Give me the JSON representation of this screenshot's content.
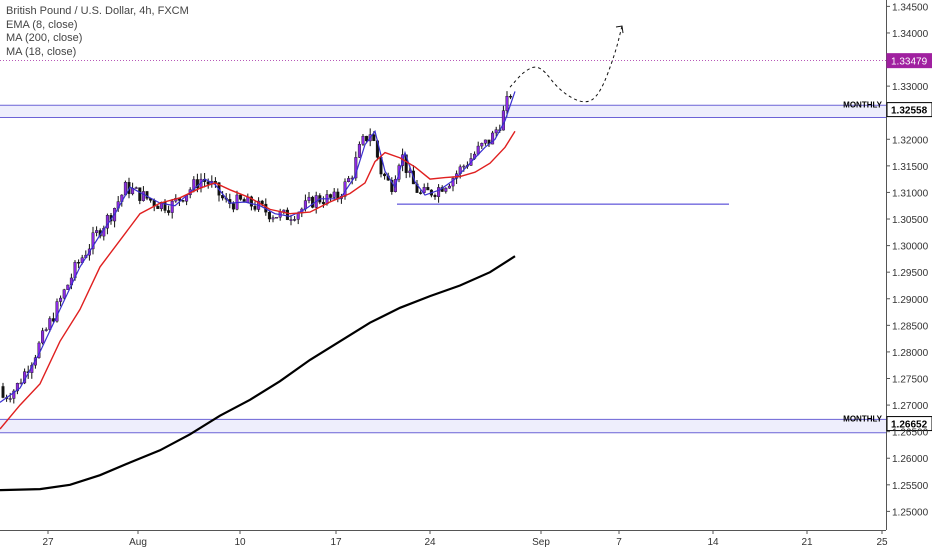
{
  "legend": {
    "symbol": "British Pound / U.S. Dollar, 4h, FXCM",
    "indicator_1": "EMA (8, close)",
    "indicator_2": "MA (200, close)",
    "indicator_3": "MA (18, close)"
  },
  "colors": {
    "up_candle": "#8a2be2",
    "down_candle": "#111111",
    "ema8": "#3a2fd0",
    "ma18": "#e02020",
    "ma200": "#000000",
    "zone_line": "#6c63d6",
    "zone_fill": "#eeeefc",
    "last_price_bg": "#a020a0",
    "axis_text": "#333333"
  },
  "chart_data": {
    "type": "candlestick",
    "title": "British Pound / U.S. Dollar, 4h, FXCM",
    "ylim": [
      1.2465,
      1.3462
    ],
    "y_ticks": [
      "1.34500",
      "1.34000",
      "1.33479",
      "1.33000",
      "1.32558",
      "1.32000",
      "1.31500",
      "1.31000",
      "1.30500",
      "1.30000",
      "1.29500",
      "1.29000",
      "1.28500",
      "1.28000",
      "1.27500",
      "1.27000",
      "1.26652",
      "1.26500",
      "1.26000",
      "1.25500",
      "1.25000"
    ],
    "x_ticks": [
      "27",
      "Aug",
      "10",
      "17",
      "24",
      "Sep",
      "7",
      "14",
      "21",
      "25"
    ],
    "last_price": "1.33479",
    "levels": [
      {
        "label": "MONTHLY",
        "price_label": "1.32558",
        "top": 1.3264,
        "bottom": 1.3241
      },
      {
        "label": "MONTHLY",
        "price_label": "1.26652",
        "top": 1.2673,
        "bottom": 1.2648
      }
    ],
    "support_line": 1.3078,
    "series": [
      {
        "name": "EMA (8, close)",
        "points": [
          [
            0,
            1.2705
          ],
          [
            20,
            1.2732
          ],
          [
            40,
            1.28
          ],
          [
            60,
            1.288
          ],
          [
            80,
            1.296
          ],
          [
            100,
            1.302
          ],
          [
            115,
            1.306
          ],
          [
            130,
            1.311
          ],
          [
            145,
            1.3095
          ],
          [
            160,
            1.308
          ],
          [
            175,
            1.3075
          ],
          [
            190,
            1.31
          ],
          [
            205,
            1.3125
          ],
          [
            215,
            1.3115
          ],
          [
            230,
            1.308
          ],
          [
            245,
            1.3082
          ],
          [
            260,
            1.3075
          ],
          [
            275,
            1.306
          ],
          [
            290,
            1.3055
          ],
          [
            305,
            1.3068
          ],
          [
            320,
            1.3088
          ],
          [
            340,
            1.3088
          ],
          [
            355,
            1.313
          ],
          [
            365,
            1.319
          ],
          [
            375,
            1.3215
          ],
          [
            385,
            1.314
          ],
          [
            395,
            1.311
          ],
          [
            405,
            1.3175
          ],
          [
            415,
            1.312
          ],
          [
            425,
            1.3095
          ],
          [
            440,
            1.3105
          ],
          [
            455,
            1.3125
          ],
          [
            470,
            1.3155
          ],
          [
            485,
            1.3185
          ],
          [
            495,
            1.32
          ],
          [
            505,
            1.3235
          ],
          [
            515,
            1.329
          ]
        ]
      },
      {
        "name": "MA (18, close)",
        "points": [
          [
            0,
            1.2655
          ],
          [
            20,
            1.27
          ],
          [
            40,
            1.274
          ],
          [
            60,
            1.282
          ],
          [
            80,
            1.288
          ],
          [
            100,
            1.296
          ],
          [
            120,
            1.301
          ],
          [
            140,
            1.306
          ],
          [
            160,
            1.308
          ],
          [
            180,
            1.309
          ],
          [
            200,
            1.3108
          ],
          [
            215,
            1.3118
          ],
          [
            230,
            1.3105
          ],
          [
            250,
            1.309
          ],
          [
            270,
            1.3068
          ],
          [
            290,
            1.306
          ],
          [
            310,
            1.3063
          ],
          [
            330,
            1.3082
          ],
          [
            350,
            1.3098
          ],
          [
            365,
            1.3118
          ],
          [
            375,
            1.3158
          ],
          [
            385,
            1.3175
          ],
          [
            400,
            1.3165
          ],
          [
            415,
            1.3148
          ],
          [
            430,
            1.3125
          ],
          [
            445,
            1.3128
          ],
          [
            460,
            1.313
          ],
          [
            475,
            1.3138
          ],
          [
            490,
            1.3155
          ],
          [
            505,
            1.3185
          ],
          [
            515,
            1.3215
          ]
        ]
      },
      {
        "name": "MA (200, close)",
        "points": [
          [
            0,
            1.254
          ],
          [
            40,
            1.2542
          ],
          [
            70,
            1.255
          ],
          [
            100,
            1.2568
          ],
          [
            130,
            1.2592
          ],
          [
            160,
            1.2615
          ],
          [
            190,
            1.2645
          ],
          [
            220,
            1.268
          ],
          [
            250,
            1.271
          ],
          [
            280,
            1.2745
          ],
          [
            310,
            1.2785
          ],
          [
            340,
            1.282
          ],
          [
            370,
            1.2855
          ],
          [
            400,
            1.2883
          ],
          [
            430,
            1.2905
          ],
          [
            460,
            1.2925
          ],
          [
            490,
            1.295
          ],
          [
            515,
            1.298
          ]
        ]
      }
    ],
    "projection": [
      [
        510,
        1.3298
      ],
      [
        525,
        1.333
      ],
      [
        540,
        1.334
      ],
      [
        560,
        1.329
      ],
      [
        585,
        1.3265
      ],
      [
        600,
        1.3285
      ],
      [
        615,
        1.336
      ],
      [
        622,
        1.3413
      ]
    ]
  }
}
